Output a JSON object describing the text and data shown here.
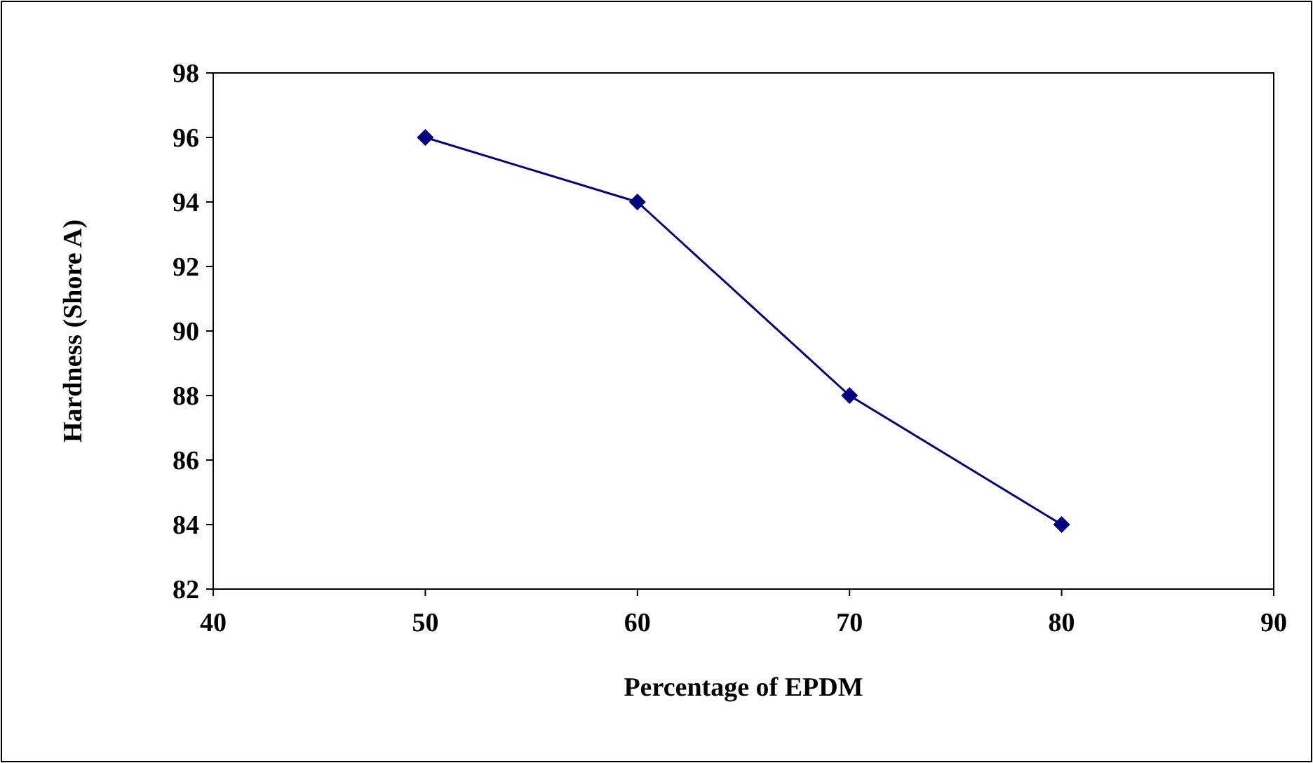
{
  "chart_data": {
    "type": "line",
    "xlabel": "Percentage of EPDM",
    "ylabel": "Hardness (Shore A)",
    "x": [
      50,
      60,
      70,
      80
    ],
    "series": [
      {
        "color": "#000080",
        "values": [
          96,
          94,
          88,
          84
        ],
        "errors": [
          0.2,
          null,
          null,
          null
        ]
      }
    ],
    "xlim": [
      40,
      90
    ],
    "xticks": [
      40,
      50,
      60,
      70,
      80,
      90
    ],
    "ylim": [
      82,
      98
    ],
    "yticks": [
      82,
      84,
      86,
      88,
      90,
      92,
      94,
      96,
      98
    ],
    "marker": "diamond",
    "line_style": "solid",
    "grid": false
  }
}
